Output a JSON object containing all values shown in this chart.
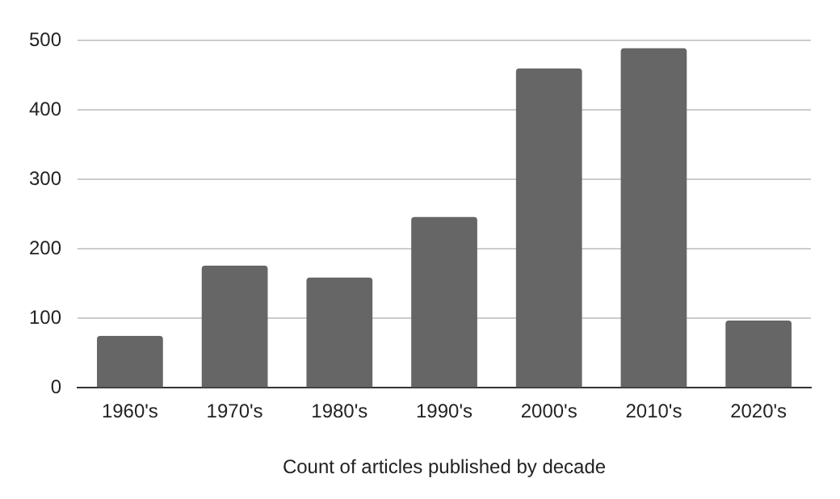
{
  "chart_data": {
    "type": "bar",
    "xlabel": "Count of articles published by decade",
    "categories": [
      "1960's",
      "1970's",
      "1980's",
      "1990's",
      "2000's",
      "2010's",
      "2020's"
    ],
    "values": [
      75,
      176,
      159,
      246,
      460,
      489,
      97
    ],
    "color": "#666666",
    "ylim": [
      0,
      500
    ],
    "yticks": [
      0,
      100,
      200,
      300,
      400,
      500
    ],
    "grid": "y",
    "legend": false
  }
}
